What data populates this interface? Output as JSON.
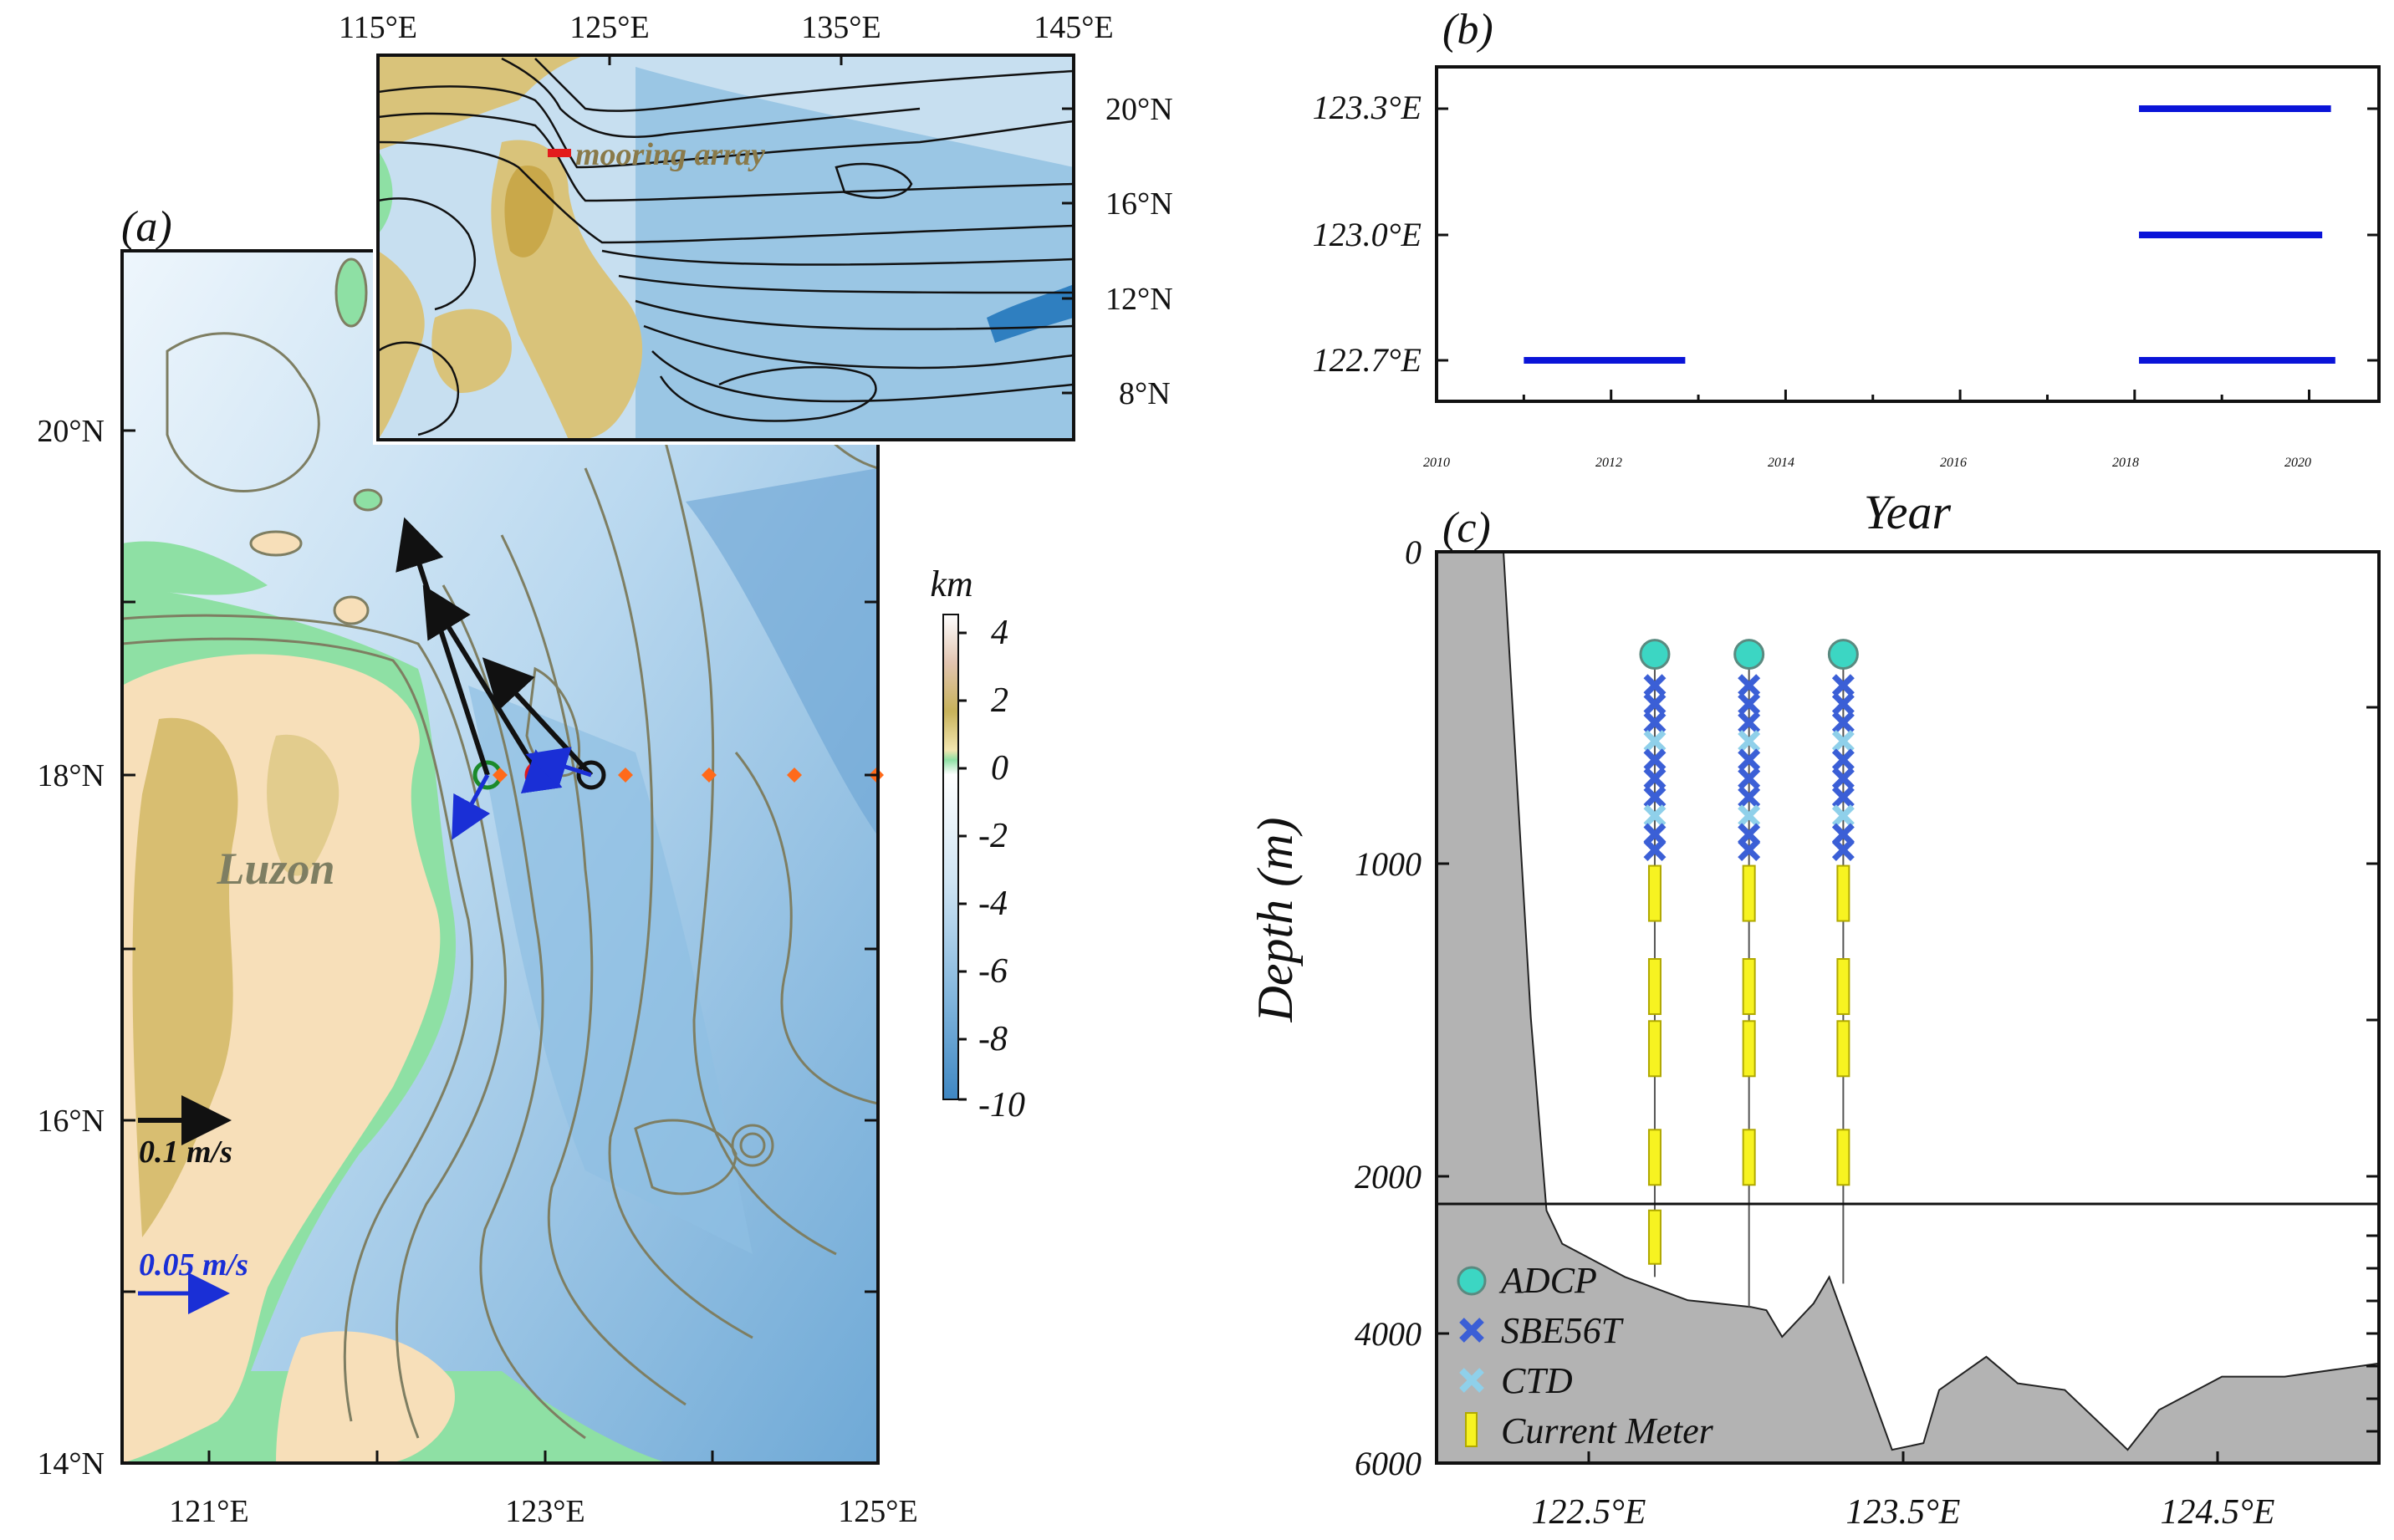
{
  "panel_a": {
    "label": "(a)",
    "x_ticks": [
      "121°E",
      "123°E",
      "125°E"
    ],
    "y_ticks": [
      "14°N",
      "16°N",
      "18°N",
      "20°N"
    ],
    "place_label": "Luzon",
    "scale_black": "0.1 m/s",
    "scale_blue": "0.05 m/s",
    "colorbar_title": "km",
    "colorbar_ticks": [
      "4",
      "2",
      "0",
      "-2",
      "-4",
      "-6",
      "-8",
      "-10"
    ],
    "colors": {
      "land_low": "#f7dfb9",
      "land_high": "#cdb35a",
      "shelf": "#8ee0a4",
      "shallow": "#e8f3fb",
      "deep": "#5c9fd0",
      "contour": "#7e7e62",
      "mooring_w": "#1b8a2a",
      "mooring_m": "#e31a1c",
      "mooring_e": "#111111",
      "diamond": "#ff6a1a",
      "vec_black": "#111111",
      "vec_blue": "#1a2fd6"
    }
  },
  "inset": {
    "x_ticks": [
      "115°E",
      "125°E",
      "135°E",
      "145°E"
    ],
    "y_ticks": [
      "20°N",
      "16°N",
      "12°N",
      "8°N"
    ],
    "label": "mooring array"
  },
  "panel_b": {
    "label": "(b)",
    "xlabel": "Year",
    "x_ticks": [
      "2010",
      "2012",
      "2014",
      "2016",
      "2018",
      "2020"
    ],
    "y_ticks": [
      "123.3°E",
      "123.0°E",
      "122.7°E"
    ]
  },
  "panel_c": {
    "label": "(c)",
    "ylabel": "Depth (m)",
    "y_ticks": [
      "0",
      "1000",
      "2000",
      "4000",
      "6000"
    ],
    "x_ticks": [
      "122.5°E",
      "123.5°E",
      "124.5°E"
    ],
    "legend": [
      "ADCP",
      "SBE56T",
      "CTD",
      "Current Meter"
    ],
    "colors": {
      "terrain": "#b3b3b3",
      "adcp": "#3cd6c3",
      "sbe": "#3b5fd6",
      "ctd": "#8fd0ea",
      "meter": "#f7f321"
    }
  },
  "chart_data": [
    {
      "type": "line",
      "panel": "b",
      "xlabel": "Year",
      "ylabel": "",
      "xlim": [
        2010,
        2020.8
      ],
      "categories": [
        "122.7°E",
        "123.0°E",
        "123.3°E"
      ],
      "series": [
        {
          "y": "122.7°E",
          "segments": [
            [
              2011.0,
              2012.85
            ],
            [
              2018.05,
              2020.3
            ]
          ]
        },
        {
          "y": "123.0°E",
          "segments": [
            [
              2018.05,
              2020.15
            ]
          ]
        },
        {
          "y": "123.3°E",
          "segments": [
            [
              2018.05,
              2020.25
            ]
          ]
        }
      ]
    },
    {
      "type": "area",
      "panel": "c",
      "xlabel": "",
      "ylabel": "Depth (m)",
      "xlim": [
        122.0,
        125.0
      ],
      "ylim": [
        6000,
        0
      ],
      "bathymetry_x": [
        122.0,
        122.2,
        122.3,
        122.35,
        122.4,
        122.6,
        122.8,
        123.0,
        123.05,
        123.1,
        123.2,
        123.25,
        123.35,
        123.45,
        123.55,
        123.6,
        123.75,
        123.85,
        124.0,
        124.2,
        124.3,
        124.5,
        124.7,
        125.0
      ],
      "bathymetry_depth": [
        0,
        0,
        1500,
        2200,
        2700,
        3200,
        3550,
        3650,
        3700,
        4100,
        3600,
        3200,
        4500,
        5800,
        5700,
        4900,
        4400,
        4800,
        4900,
        5800,
        5200,
        4700,
        4700,
        4500
      ],
      "moorings": [
        {
          "x": 122.7,
          "adcp_depth": 330,
          "bottom_depth": 3200
        },
        {
          "x": 123.0,
          "adcp_depth": 330,
          "bottom_depth": 3650
        },
        {
          "x": 123.3,
          "adcp_depth": 330,
          "bottom_depth": 3300
        }
      ]
    }
  ]
}
